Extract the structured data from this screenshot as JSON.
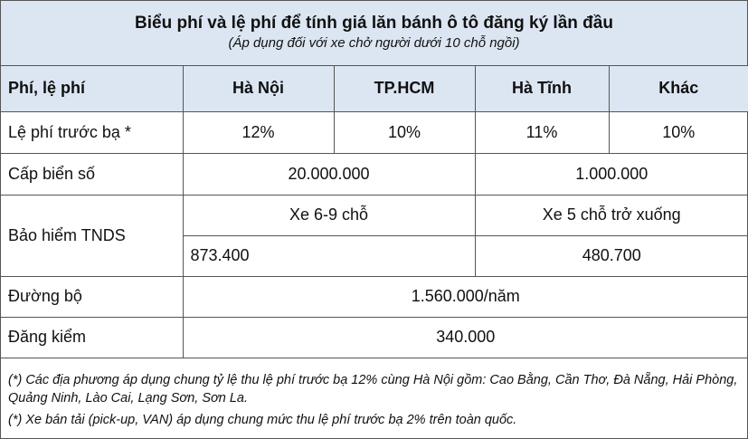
{
  "title": "Biểu phí và lệ phí để tính giá lăn bánh ô tô đăng ký lần đầu",
  "subtitle": "(Áp dụng đối với xe chở người dưới 10 chỗ ngồi)",
  "headers": [
    "Phí, lệ phí",
    "Hà Nội",
    "TP.HCM",
    "Hà Tĩnh",
    "Khác"
  ],
  "rows": {
    "le_phi": {
      "label": "Lệ phí trước bạ *",
      "values": [
        "12%",
        "10%",
        "11%",
        "10%"
      ]
    },
    "bien_so": {
      "label": "Cấp biển số",
      "values": [
        "20.000.000",
        "1.000.000"
      ]
    },
    "bao_hiem": {
      "label": "Bảo hiểm TNDS",
      "types": [
        "Xe 6-9 chỗ",
        "Xe 5 chỗ trở xuống"
      ],
      "values": [
        "873.400",
        "480.700"
      ]
    },
    "duong_bo": {
      "label": "Đường bộ",
      "value": "1.560.000/năm"
    },
    "dang_kiem": {
      "label": "Đăng kiểm",
      "value": "340.000"
    }
  },
  "notes": [
    "(*) Các địa phương áp dụng chung tỷ lệ thu lệ phí trước bạ 12% cùng Hà Nội gồm: Cao Bằng, Cần Thơ, Đà Nẵng, Hải Phòng, Quảng Ninh, Lào Cai, Lạng Sơn, Sơn La.",
    "(*) Xe bán tải (pick-up, VAN) áp dụng chung mức thu lệ phí trước bạ 2% trên toàn quốc."
  ]
}
